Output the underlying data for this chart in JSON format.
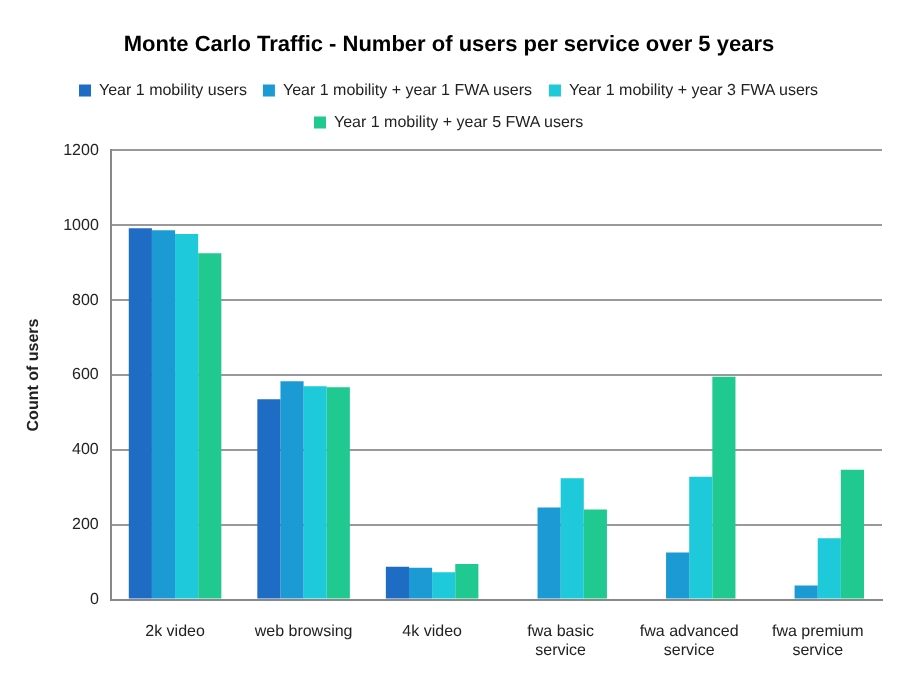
{
  "chart_data": {
    "type": "bar",
    "title": "Monte Carlo Traffic - Number of users per service over 5 years",
    "ylabel": "Count of users",
    "categories": [
      "2k video",
      "web browsing",
      "4k video",
      "fwa basic service",
      "fwa advanced service",
      "fwa premium service"
    ],
    "series": [
      {
        "name": "Year 1 mobility users",
        "color": "#1f6cc4",
        "values": [
          992,
          535,
          88,
          0,
          0,
          0
        ]
      },
      {
        "name": "Year 1 mobility + year 1 FWA users",
        "color": "#1b9ad4",
        "values": [
          987,
          583,
          85,
          246,
          126,
          38
        ]
      },
      {
        "name": "Year 1 mobility + year 3 FWA users",
        "color": "#1ec9d9",
        "values": [
          977,
          570,
          73,
          324,
          328,
          164
        ]
      },
      {
        "name": "Year 1 mobility + year 5 FWA users",
        "color": "#20c98f",
        "values": [
          925,
          567,
          95,
          241,
          595,
          347
        ]
      }
    ],
    "ylim": [
      0,
      1200
    ],
    "yticks": [
      0,
      200,
      400,
      600,
      800,
      1000,
      1200
    ],
    "grid": "y",
    "legend": "top"
  }
}
